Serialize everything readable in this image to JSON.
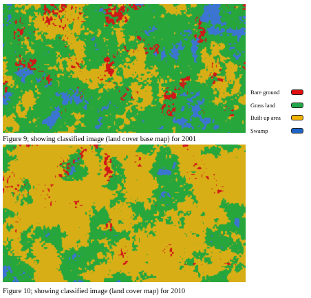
{
  "figures": [
    {
      "caption": "Figure 9; showing classified image (land cover base map)  for 2001"
    },
    {
      "caption": "Figure 10; showing classified image (land cover map) for 2010"
    }
  ],
  "legend": {
    "items": [
      {
        "label": "Bare ground",
        "color": "#e01010"
      },
      {
        "label": "Grass land",
        "color": "#22a84a"
      },
      {
        "label": "Built up area",
        "color": "#f0b400"
      },
      {
        "label": "Swamp",
        "color": "#1e64c8"
      }
    ]
  },
  "colors": {
    "bare_ground": "#d01818",
    "grass_land": "#27a63c",
    "built_up": "#d8ae16",
    "swamp": "#3c74d2"
  }
}
